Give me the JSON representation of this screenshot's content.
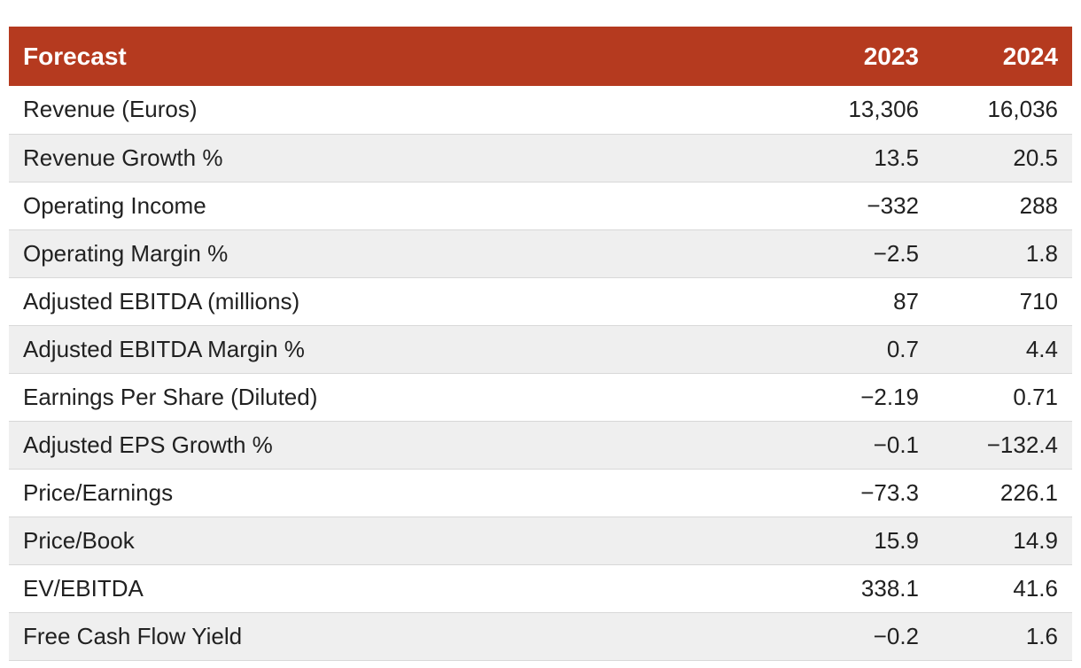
{
  "header": {
    "title": "Forecast",
    "years": [
      "2023",
      "2024"
    ]
  },
  "rows": [
    {
      "label": "Revenue (Euros)",
      "y2023": "13,306",
      "y2024": "16,036"
    },
    {
      "label": "Revenue Growth %",
      "y2023": "13.5",
      "y2024": "20.5"
    },
    {
      "label": "Operating Income",
      "y2023": "−332",
      "y2024": "288"
    },
    {
      "label": "Operating Margin %",
      "y2023": "−2.5",
      "y2024": "1.8"
    },
    {
      "label": "Adjusted EBITDA (millions)",
      "y2023": "87",
      "y2024": "710"
    },
    {
      "label": "Adjusted EBITDA Margin %",
      "y2023": "0.7",
      "y2024": "4.4"
    },
    {
      "label": "Earnings Per Share (Diluted)",
      "y2023": "−2.19",
      "y2024": "0.71"
    },
    {
      "label": "Adjusted EPS Growth %",
      "y2023": "−0.1",
      "y2024": "−132.4"
    },
    {
      "label": "Price/Earnings",
      "y2023": "−73.3",
      "y2024": "226.1"
    },
    {
      "label": "Price/Book",
      "y2023": "15.9",
      "y2024": "14.9"
    },
    {
      "label": "EV/EBITDA",
      "y2023": "338.1",
      "y2024": "41.6"
    },
    {
      "label": "Free Cash Flow Yield",
      "y2023": "−0.2",
      "y2024": "1.6"
    }
  ],
  "colors": {
    "header_bg": "#b53a1f",
    "header_text": "#ffffff",
    "stripe": "#efefef"
  }
}
